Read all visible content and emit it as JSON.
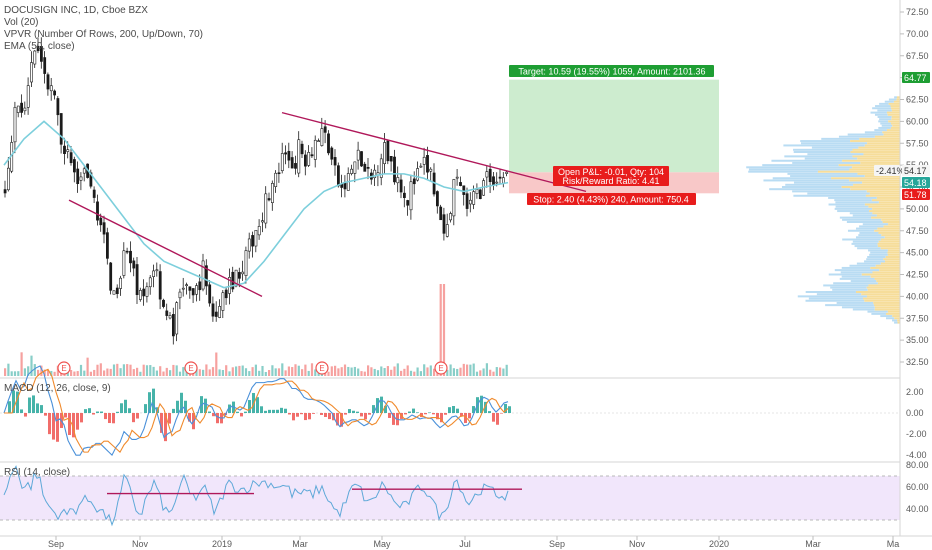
{
  "header": {
    "symbol_line": "DOCUSIGN INC, 1D, Cboe BZX",
    "indicators": [
      "Vol (20)",
      "VPVR (Number Of Rows, 200, Up/Down, 70)",
      "EMA (50, close)"
    ]
  },
  "colors": {
    "up": "#26a69a",
    "down": "#ef5350",
    "ema": "#7dcfdc",
    "trend": "#b0185a",
    "target_fill": "#cdeccf",
    "target_label": "#1e9e33",
    "stop_fill": "#f8c8c8",
    "stop_label": "#e81c1c",
    "vpvr_up": "#b9dcf3",
    "vpvr_down": "#f6dd9a",
    "rsi_band": "#f1e6fb",
    "rsi_line": "#5ea8d8",
    "macd_line": "#4a90d9",
    "signal_line": "#f08a2c",
    "price_badge": "#26a69a",
    "tag_bg": "#f5f5f5"
  },
  "price_axis": {
    "ticks": [
      "72.50",
      "70.00",
      "67.50",
      "65.00",
      "62.50",
      "60.00",
      "57.50",
      "55.00",
      "52.50",
      "50.00",
      "47.50",
      "45.00",
      "42.50",
      "40.00",
      "37.50",
      "35.00",
      "32.50"
    ],
    "labels": [
      {
        "text": "64.77",
        "kind": "target"
      },
      {
        "text": "-2.41%",
        "kind": "plain"
      },
      {
        "text": "54.17",
        "kind": "plain"
      },
      {
        "text": "54.18",
        "kind": "current"
      },
      {
        "text": "51.78",
        "kind": "stop"
      }
    ]
  },
  "macd": {
    "label": "MACD (12, 26, close, 9)",
    "ticks": [
      "2.00",
      "0.00",
      "-2.00",
      "-4.00"
    ]
  },
  "rsi": {
    "label": "RSI (14, close)",
    "ticks": [
      "80.00",
      "60.00",
      "40.00"
    ]
  },
  "time_axis": [
    "Sep",
    "Nov",
    "2019",
    "Mar",
    "May",
    "Jul",
    "Sep",
    "Nov",
    "2020",
    "Mar",
    "Ma"
  ],
  "position": {
    "target_text": "Target: 10.59 (19.55%) 1059, Amount: 2101.36",
    "open_pnl_text": "Open P&L: -0.01, Qty: 104",
    "risk_reward_text": "Risk/Reward Ratio: 4.41",
    "stop_text": "Stop: 2.40 (4.43%) 240, Amount: 750.4"
  },
  "earnings_marker": "E",
  "chart_data": {
    "type": "candlestick",
    "title": "DOCUSIGN INC, 1D, Cboe BZX",
    "x_range": [
      "2018-08",
      "2020-05"
    ],
    "ylim": [
      31,
      74
    ],
    "close_path": [
      {
        "t": 0,
        "y": 52
      },
      {
        "t": 6,
        "y": 58
      },
      {
        "t": 12,
        "y": 63
      },
      {
        "t": 18,
        "y": 59
      },
      {
        "t": 24,
        "y": 65
      },
      {
        "t": 30,
        "y": 67
      },
      {
        "t": 36,
        "y": 68
      },
      {
        "t": 42,
        "y": 64
      },
      {
        "t": 48,
        "y": 63
      },
      {
        "t": 54,
        "y": 59
      },
      {
        "t": 60,
        "y": 57
      },
      {
        "t": 66,
        "y": 55
      },
      {
        "t": 72,
        "y": 53
      },
      {
        "t": 78,
        "y": 54
      },
      {
        "t": 84,
        "y": 52
      },
      {
        "t": 90,
        "y": 51
      },
      {
        "t": 96,
        "y": 48
      },
      {
        "t": 102,
        "y": 44
      },
      {
        "t": 108,
        "y": 40
      },
      {
        "t": 114,
        "y": 42
      },
      {
        "t": 120,
        "y": 47
      },
      {
        "t": 126,
        "y": 43
      },
      {
        "t": 132,
        "y": 41
      },
      {
        "t": 138,
        "y": 39
      },
      {
        "t": 144,
        "y": 42
      },
      {
        "t": 150,
        "y": 44
      },
      {
        "t": 156,
        "y": 40
      },
      {
        "t": 162,
        "y": 38
      },
      {
        "t": 168,
        "y": 36
      },
      {
        "t": 174,
        "y": 40
      },
      {
        "t": 180,
        "y": 42
      },
      {
        "t": 186,
        "y": 39
      },
      {
        "t": 192,
        "y": 41
      },
      {
        "t": 198,
        "y": 43
      },
      {
        "t": 204,
        "y": 40
      },
      {
        "t": 210,
        "y": 37
      },
      {
        "t": 216,
        "y": 39
      },
      {
        "t": 222,
        "y": 41
      },
      {
        "t": 228,
        "y": 42
      },
      {
        "t": 234,
        "y": 43
      },
      {
        "t": 240,
        "y": 44
      },
      {
        "t": 246,
        "y": 46
      },
      {
        "t": 252,
        "y": 48
      },
      {
        "t": 258,
        "y": 50
      },
      {
        "t": 264,
        "y": 52
      },
      {
        "t": 270,
        "y": 53
      },
      {
        "t": 276,
        "y": 55
      },
      {
        "t": 282,
        "y": 56
      },
      {
        "t": 288,
        "y": 55
      },
      {
        "t": 294,
        "y": 57
      },
      {
        "t": 300,
        "y": 56
      },
      {
        "t": 306,
        "y": 57
      },
      {
        "t": 312,
        "y": 58
      },
      {
        "t": 318,
        "y": 59
      },
      {
        "t": 324,
        "y": 57
      },
      {
        "t": 330,
        "y": 54
      },
      {
        "t": 336,
        "y": 52
      },
      {
        "t": 342,
        "y": 53
      },
      {
        "t": 348,
        "y": 55
      },
      {
        "t": 354,
        "y": 56
      },
      {
        "t": 360,
        "y": 54
      },
      {
        "t": 366,
        "y": 53
      },
      {
        "t": 372,
        "y": 55
      },
      {
        "t": 378,
        "y": 57
      },
      {
        "t": 384,
        "y": 56
      },
      {
        "t": 390,
        "y": 54
      },
      {
        "t": 396,
        "y": 53
      },
      {
        "t": 402,
        "y": 51
      },
      {
        "t": 408,
        "y": 53
      },
      {
        "t": 414,
        "y": 54
      },
      {
        "t": 420,
        "y": 55
      },
      {
        "t": 426,
        "y": 54
      },
      {
        "t": 432,
        "y": 50
      },
      {
        "t": 438,
        "y": 47
      },
      {
        "t": 444,
        "y": 49
      },
      {
        "t": 450,
        "y": 53
      },
      {
        "t": 456,
        "y": 52
      },
      {
        "t": 462,
        "y": 50
      },
      {
        "t": 468,
        "y": 51
      },
      {
        "t": 474,
        "y": 52
      },
      {
        "t": 480,
        "y": 53
      },
      {
        "t": 486,
        "y": 54
      },
      {
        "t": 492,
        "y": 53
      },
      {
        "t": 498,
        "y": 54
      },
      {
        "t": 504,
        "y": 54.18
      }
    ],
    "ema_path": [
      {
        "t": 0,
        "y": 55
      },
      {
        "t": 20,
        "y": 58
      },
      {
        "t": 40,
        "y": 60
      },
      {
        "t": 60,
        "y": 58
      },
      {
        "t": 80,
        "y": 55
      },
      {
        "t": 100,
        "y": 52
      },
      {
        "t": 120,
        "y": 49
      },
      {
        "t": 140,
        "y": 46
      },
      {
        "t": 160,
        "y": 44
      },
      {
        "t": 180,
        "y": 43
      },
      {
        "t": 200,
        "y": 42
      },
      {
        "t": 220,
        "y": 41
      },
      {
        "t": 240,
        "y": 41.5
      },
      {
        "t": 260,
        "y": 44
      },
      {
        "t": 280,
        "y": 47
      },
      {
        "t": 300,
        "y": 50
      },
      {
        "t": 320,
        "y": 52
      },
      {
        "t": 340,
        "y": 53
      },
      {
        "t": 360,
        "y": 53.5
      },
      {
        "t": 380,
        "y": 54
      },
      {
        "t": 400,
        "y": 54
      },
      {
        "t": 420,
        "y": 53.5
      },
      {
        "t": 440,
        "y": 52.5
      },
      {
        "t": 460,
        "y": 52
      },
      {
        "t": 480,
        "y": 52.5
      },
      {
        "t": 504,
        "y": 53
      }
    ],
    "trendlines": [
      {
        "from": {
          "t": 65,
          "y": 51
        },
        "to": {
          "t": 258,
          "y": 40
        }
      },
      {
        "from": {
          "t": 278,
          "y": 61
        },
        "to": {
          "t": 582,
          "y": 52
        }
      }
    ],
    "position_box": {
      "entry": 54.18,
      "target": 64.77,
      "stop": 51.78,
      "t_start": 505,
      "t_end": 715
    },
    "volume_spike_t": 437,
    "earnings_t": [
      60,
      187,
      318,
      437
    ],
    "rsi_lines": [
      {
        "from": {
          "t": 103,
          "y": 54
        },
        "to": {
          "t": 250,
          "y": 54
        }
      },
      {
        "from": {
          "t": 348,
          "y": 58
        },
        "to": {
          "t": 518,
          "y": 58
        }
      }
    ]
  }
}
